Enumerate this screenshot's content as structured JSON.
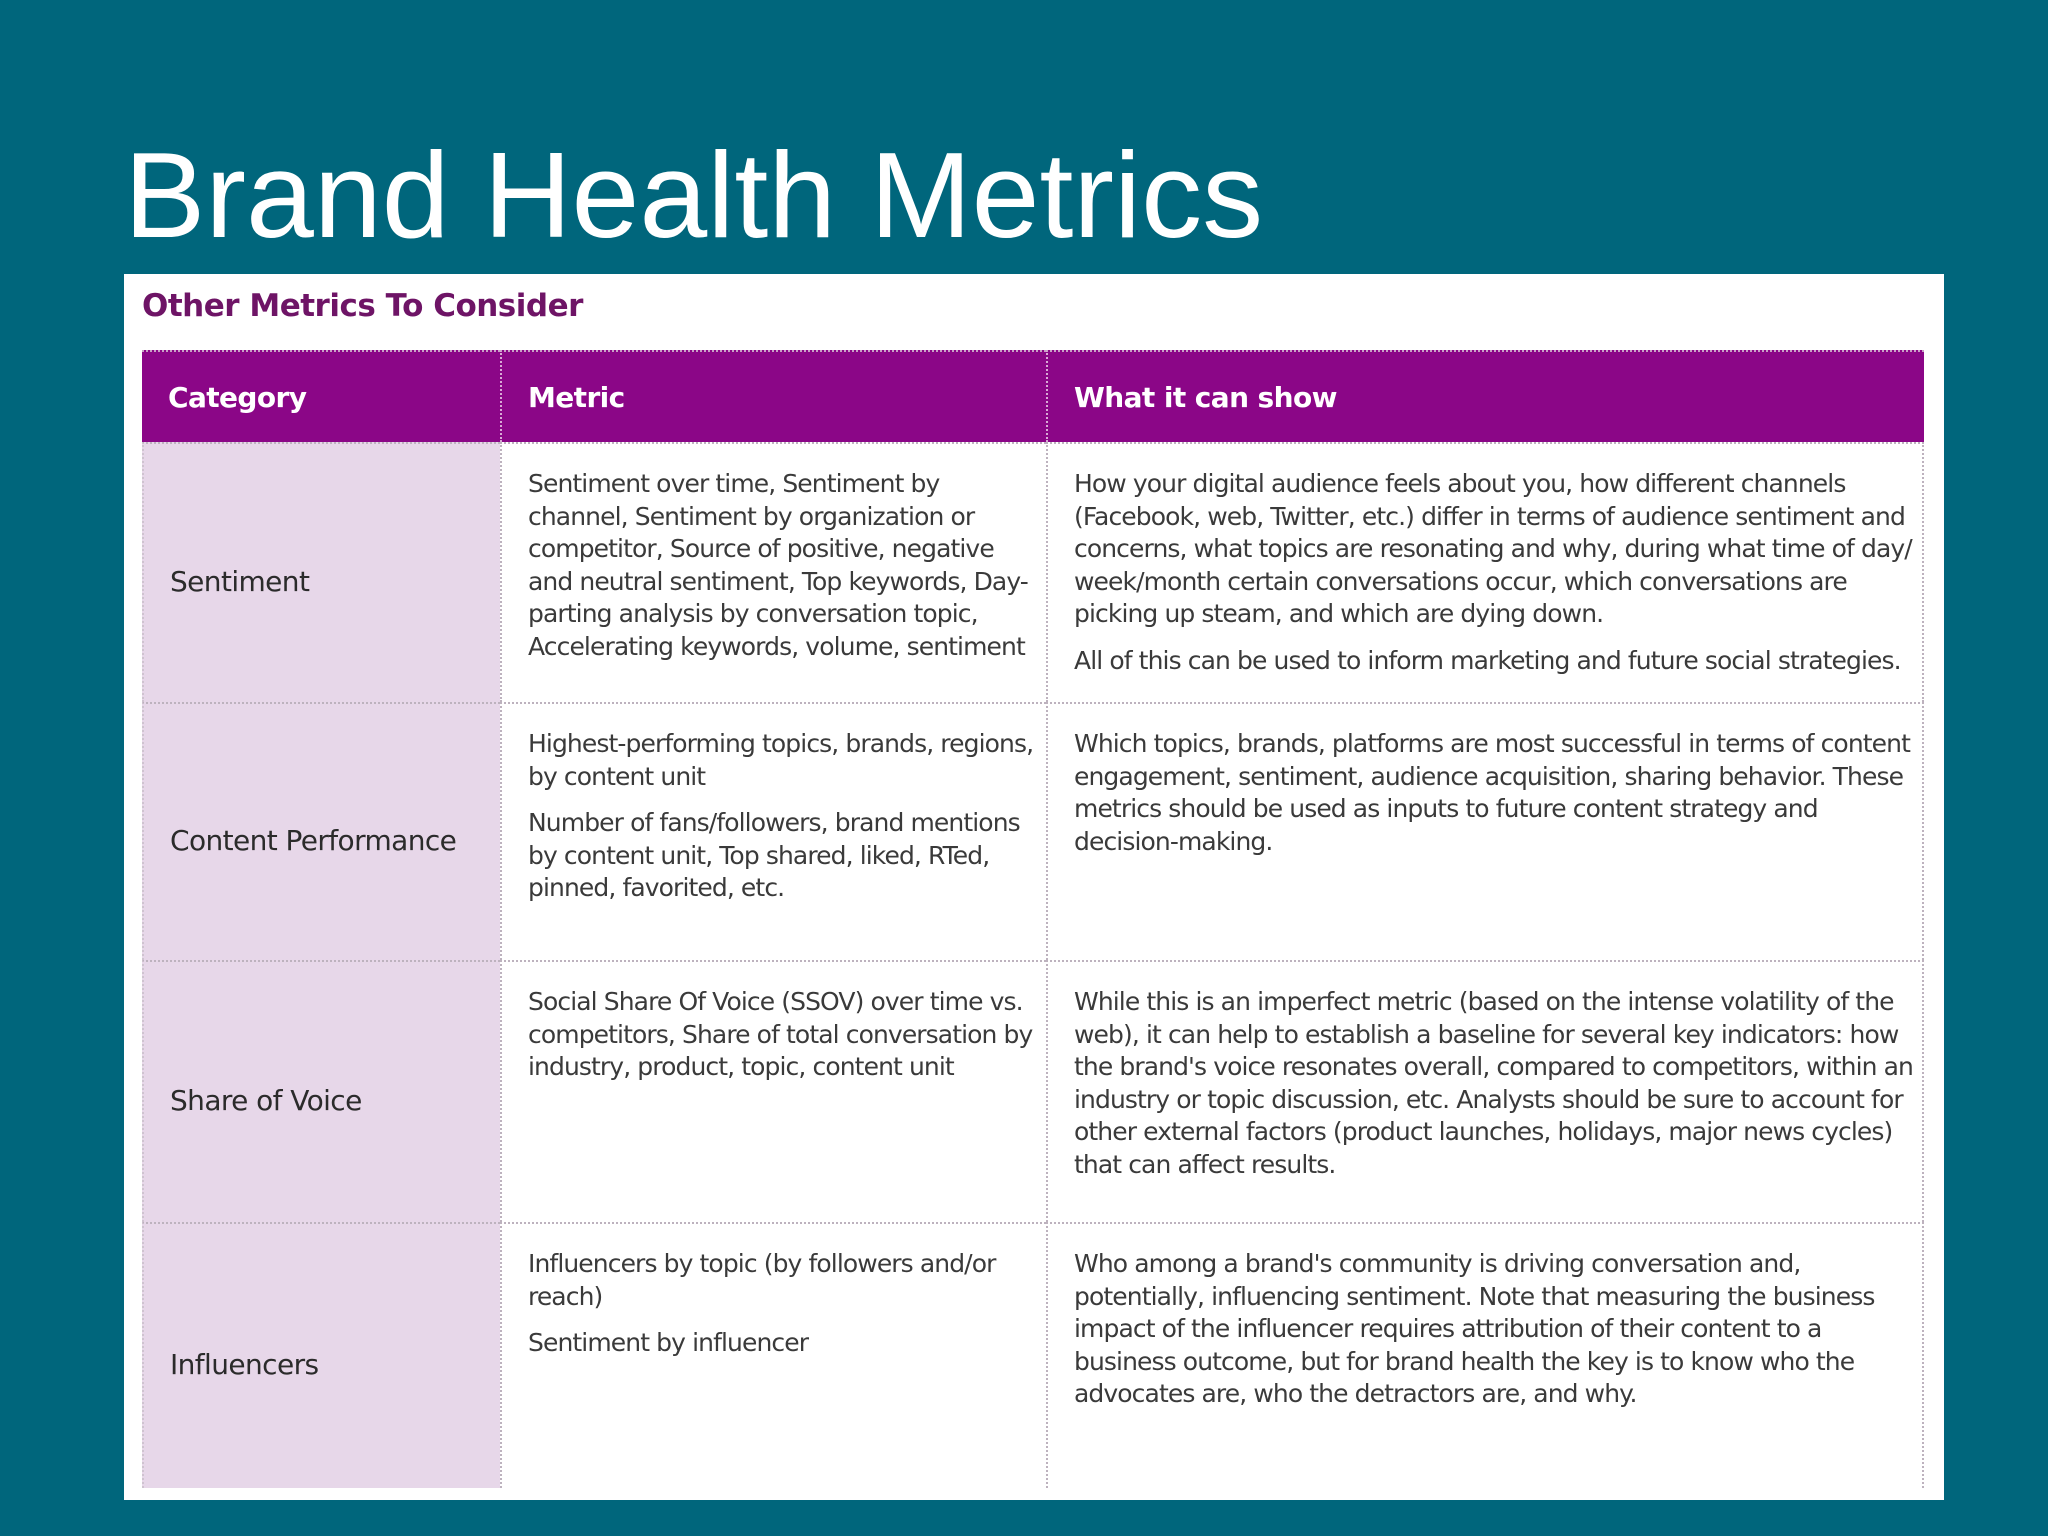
{
  "slide": {
    "title": "Brand Health Metrics"
  },
  "card": {
    "title": "Other Metrics To Consider"
  },
  "table": {
    "headers": [
      "Category",
      "Metric",
      "What it can show"
    ],
    "rows": [
      {
        "category": "Sentiment",
        "metric": [
          "Sentiment over time, Sentiment by channel, Sentiment by organization or competitor, Source of positive, negative and neutral sentiment, Top keywords, Day-parting analysis by conversation topic, Accelerating keywords, volume, sentiment"
        ],
        "shows": [
          "How your digital audience feels about you, how different channels (Facebook, web, Twitter, etc.) differ in terms of audience sentiment and concerns, what topics are resonating and why, during what time of day/ week/month certain conversations occur, which conversations are picking up steam, and which are dying down.",
          "All of this can be used to inform marketing and future social strategies."
        ]
      },
      {
        "category": "Content Performance",
        "metric": [
          "Highest-performing topics, brands, regions, by content unit",
          "Number of fans/followers, brand mentions by content unit, Top shared, liked, RTed, pinned, favorited, etc."
        ],
        "shows": [
          "Which topics, brands, platforms are most successful in terms of content engagement, sentiment, audience acquisition, sharing behavior. These metrics should be used as inputs to future content strategy and decision-making."
        ]
      },
      {
        "category": "Share of Voice",
        "metric": [
          "Social Share Of Voice (SSOV) over time vs. competitors, Share of total conversation by industry, product, topic, content unit"
        ],
        "shows": [
          "While this is an imperfect metric (based on the intense volatility of the web), it can help to establish a baseline for several key indicators: how the brand's voice resonates overall, compared to competitors, within an industry or topic discussion, etc. Analysts should be sure to account for other external factors (product launches, holidays, major news cycles) that can affect results."
        ]
      },
      {
        "category": "Influencers",
        "metric": [
          "Influencers by topic (by followers and/or reach)",
          "Sentiment by influencer"
        ],
        "shows": [
          "Who among a brand's community is driving conversation and, potentially, influencing sentiment. Note that measuring the business impact of the influencer requires attribution of their content to a business outcome, but for brand health the key is to know who the advocates are, who the detractors are, and why."
        ]
      }
    ]
  }
}
